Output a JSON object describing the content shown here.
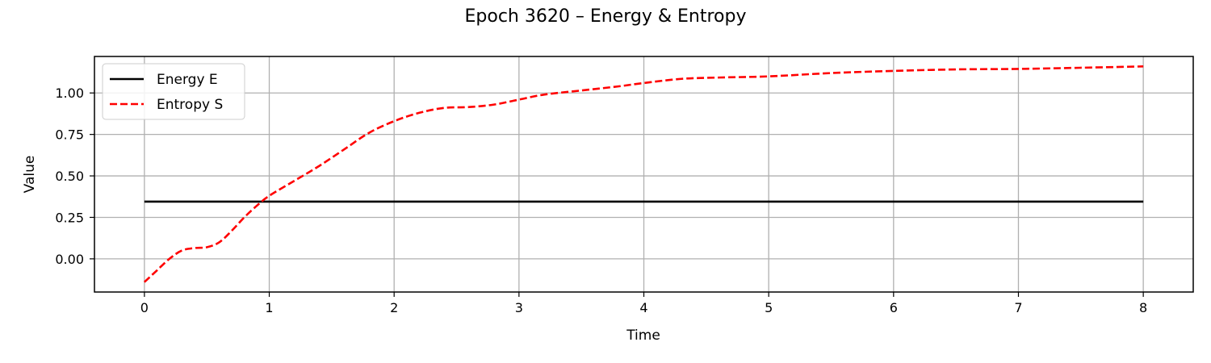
{
  "chart_data": {
    "type": "line",
    "title": "Epoch 3620 – Energy & Entropy",
    "xlabel": "Time",
    "ylabel": "Value",
    "xlim": [
      -0.4,
      8.4
    ],
    "ylim": [
      -0.2,
      1.22
    ],
    "xticks": [
      0,
      1,
      2,
      3,
      4,
      5,
      6,
      7,
      8
    ],
    "yticks": [
      0.0,
      0.25,
      0.5,
      0.75,
      1.0
    ],
    "ytick_labels": [
      "0.00",
      "0.25",
      "0.50",
      "0.75",
      "1.00"
    ],
    "xtick_labels": [
      "0",
      "1",
      "2",
      "3",
      "4",
      "5",
      "6",
      "7",
      "8"
    ],
    "grid": true,
    "legend_position": "top-left",
    "series": [
      {
        "name": "Energy E",
        "color": "#000000",
        "style": "solid",
        "x": [
          0,
          8
        ],
        "y": [
          0.345,
          0.345
        ]
      },
      {
        "name": "Entropy S",
        "color": "#ff0000",
        "style": "dashed",
        "x": [
          0,
          0.1,
          0.2,
          0.3,
          0.4,
          0.5,
          0.6,
          0.7,
          0.8,
          0.9,
          1.0,
          1.2,
          1.4,
          1.6,
          1.8,
          2.0,
          2.2,
          2.4,
          2.6,
          2.8,
          3.0,
          3.2,
          3.5,
          3.8,
          4.0,
          4.3,
          4.6,
          5.0,
          5.5,
          6.0,
          6.5,
          7.0,
          7.5,
          8.0
        ],
        "y": [
          -0.14,
          -0.07,
          0.0,
          0.05,
          0.065,
          0.07,
          0.1,
          0.17,
          0.25,
          0.32,
          0.38,
          0.47,
          0.56,
          0.66,
          0.76,
          0.83,
          0.88,
          0.91,
          0.915,
          0.93,
          0.96,
          0.99,
          1.015,
          1.04,
          1.06,
          1.085,
          1.093,
          1.1,
          1.12,
          1.133,
          1.142,
          1.145,
          1.152,
          1.16
        ]
      }
    ]
  }
}
